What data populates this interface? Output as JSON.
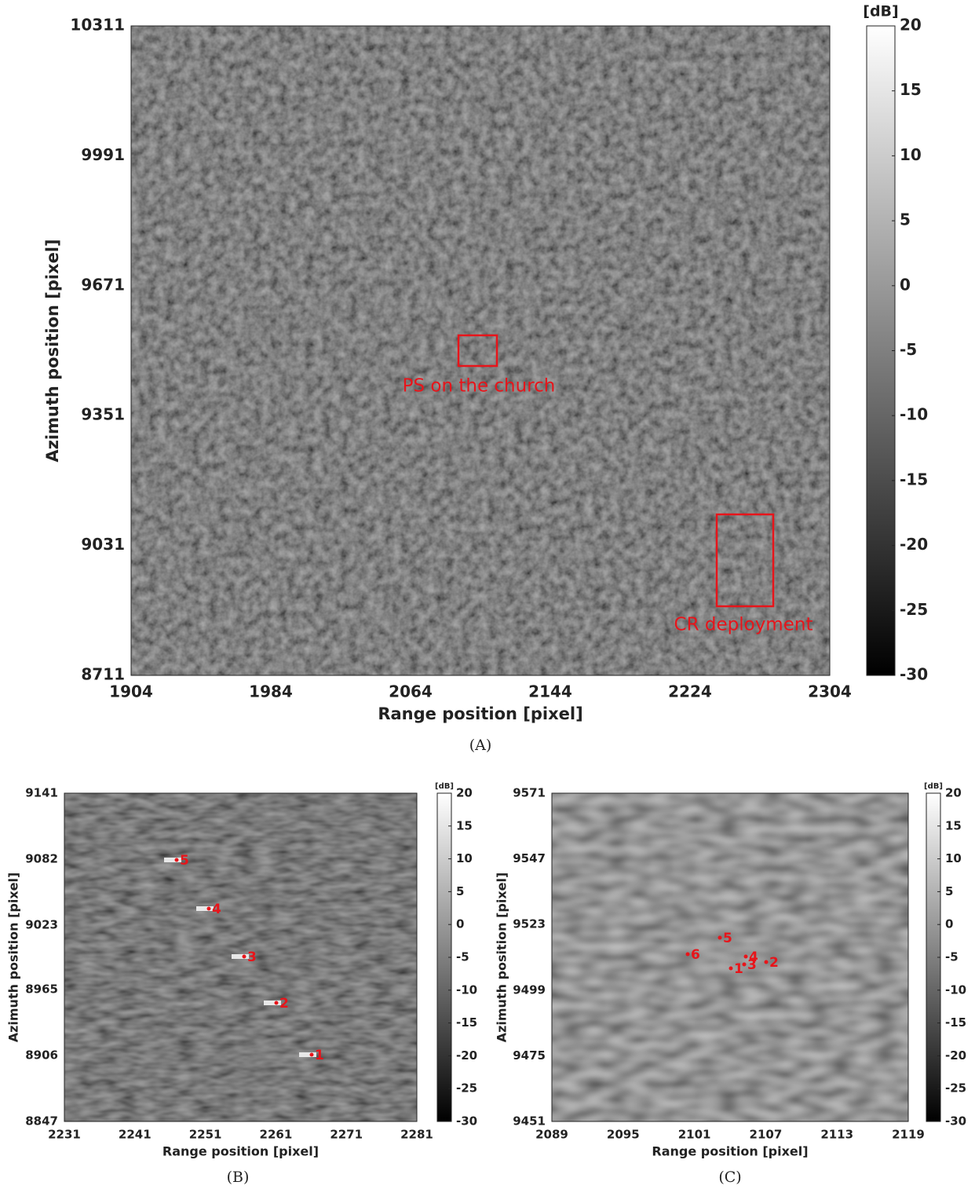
{
  "panels": [
    {
      "caption": "(A)",
      "x_label": "Range position [pixel]",
      "y_label": "Azimuth position [pixel]",
      "xticks": [
        1904,
        1984,
        2064,
        2144,
        2224,
        2304
      ],
      "yticks": [
        8711,
        9031,
        9351,
        9671,
        9991,
        10311
      ],
      "colorbar": {
        "unit": "[dB]",
        "ticks": [
          20,
          15,
          10,
          5,
          0,
          -5,
          -10,
          -15,
          -20,
          -25,
          -30
        ]
      },
      "annotations": [
        "PS on the church",
        "CR deployment"
      ]
    },
    {
      "caption": "(B)",
      "x_label": "Range position [pixel]",
      "y_label": "Azimuth position [pixel]",
      "xticks": [
        2231,
        2241,
        2251,
        2261,
        2271,
        2281
      ],
      "yticks": [
        8847,
        8906,
        8965,
        9023,
        9082,
        9141
      ],
      "colorbar": {
        "unit": "[dB]",
        "ticks": [
          20,
          15,
          10,
          5,
          0,
          -5,
          -10,
          -15,
          -20,
          -25,
          -30
        ]
      },
      "markers": [
        "1",
        "2",
        "3",
        "4",
        "5"
      ]
    },
    {
      "caption": "(C)",
      "x_label": "Range position [pixel]",
      "y_label": "Azimuth position [pixel]",
      "xticks": [
        2089,
        2095,
        2101,
        2107,
        2113,
        2119
      ],
      "yticks": [
        9451,
        9475,
        9499,
        9523,
        9547,
        9571
      ],
      "colorbar": {
        "unit": "[dB]",
        "ticks": [
          20,
          15,
          10,
          5,
          0,
          -5,
          -10,
          -15,
          -20,
          -25,
          -30
        ]
      },
      "markers": [
        "1",
        "2",
        "3",
        "4",
        "5",
        "6"
      ]
    }
  ]
}
